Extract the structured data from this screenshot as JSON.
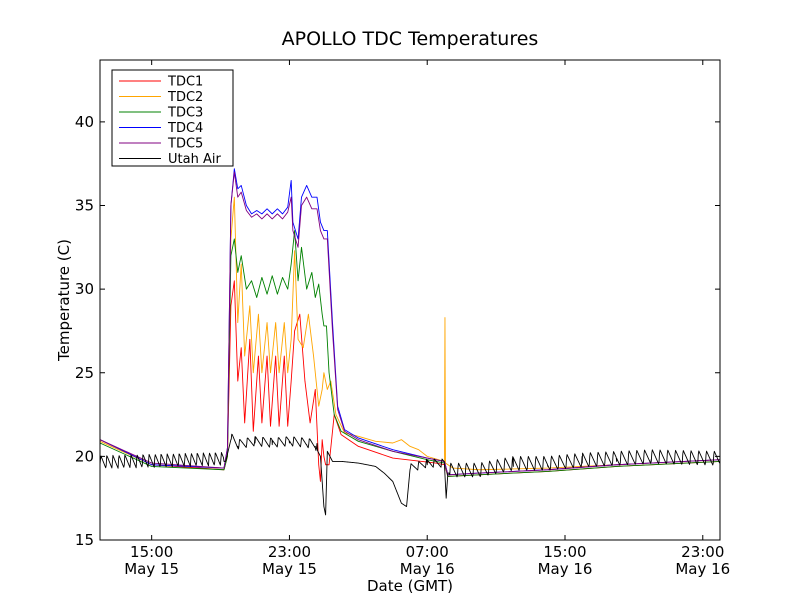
{
  "chart_data": {
    "type": "line",
    "title": "APOLLO TDC Temperatures",
    "xlabel": "Date (GMT)",
    "ylabel": "Temperature (C)",
    "x_unit": "hours since 12:00 May 15 GMT",
    "xlim": [
      0,
      36
    ],
    "ylim": [
      15,
      43.7
    ],
    "grid": false,
    "legend_position": "top-left",
    "x_ticks": [
      {
        "value": 3,
        "time": "15:00",
        "date": "May 15"
      },
      {
        "value": 11,
        "time": "23:00",
        "date": "May 15"
      },
      {
        "value": 19,
        "time": "07:00",
        "date": "May 16"
      },
      {
        "value": 27,
        "time": "15:00",
        "date": "May 16"
      },
      {
        "value": 35,
        "time": "23:00",
        "date": "May 16"
      }
    ],
    "y_ticks": [
      15,
      20,
      25,
      30,
      35,
      40
    ],
    "series": [
      {
        "name": "TDC1",
        "color": "#ff0000",
        "points": [
          [
            0,
            21
          ],
          [
            3,
            19.5
          ],
          [
            7.2,
            19.2
          ],
          [
            7.4,
            20
          ],
          [
            7.6,
            29
          ],
          [
            7.8,
            30.5
          ],
          [
            8,
            24.5
          ],
          [
            8.2,
            26.5
          ],
          [
            8.4,
            22
          ],
          [
            8.7,
            27
          ],
          [
            8.9,
            21.5
          ],
          [
            9.2,
            26
          ],
          [
            9.4,
            22
          ],
          [
            9.7,
            26
          ],
          [
            9.9,
            21.8
          ],
          [
            10.2,
            26
          ],
          [
            10.4,
            21.8
          ],
          [
            10.7,
            26
          ],
          [
            10.9,
            21.8
          ],
          [
            11.1,
            24.5
          ],
          [
            11.3,
            27.5
          ],
          [
            11.6,
            28.5
          ],
          [
            11.9,
            24.5
          ],
          [
            12.2,
            22
          ],
          [
            12.5,
            24
          ],
          [
            12.7,
            19.5
          ],
          [
            12.8,
            18.5
          ],
          [
            12.9,
            21
          ],
          [
            13,
            20
          ],
          [
            13.1,
            19.5
          ],
          [
            13.3,
            19.5
          ],
          [
            13.6,
            22.5
          ],
          [
            14,
            21.3
          ],
          [
            15,
            20.6
          ],
          [
            17,
            19.9
          ],
          [
            19.5,
            19.6
          ],
          [
            20,
            19.5
          ],
          [
            20.2,
            18.8
          ],
          [
            22,
            18.9
          ],
          [
            26,
            19.1
          ],
          [
            30,
            19.4
          ],
          [
            36,
            19.7
          ]
        ]
      },
      {
        "name": "TDC2",
        "color": "#ffa500",
        "points": [
          [
            0,
            20.9
          ],
          [
            3,
            19.5
          ],
          [
            7.2,
            19.3
          ],
          [
            7.4,
            20
          ],
          [
            7.6,
            33
          ],
          [
            7.8,
            35.5
          ],
          [
            8,
            28
          ],
          [
            8.2,
            31.5
          ],
          [
            8.4,
            26
          ],
          [
            8.7,
            29
          ],
          [
            8.9,
            25
          ],
          [
            9.2,
            28.5
          ],
          [
            9.4,
            25
          ],
          [
            9.7,
            28
          ],
          [
            9.9,
            25
          ],
          [
            10.2,
            28
          ],
          [
            10.4,
            25
          ],
          [
            10.7,
            28
          ],
          [
            10.9,
            25
          ],
          [
            11.1,
            27
          ],
          [
            11.3,
            32.3
          ],
          [
            11.5,
            27
          ],
          [
            11.8,
            26.5
          ],
          [
            12.1,
            28.5
          ],
          [
            12.4,
            26
          ],
          [
            12.7,
            23
          ],
          [
            12.9,
            24
          ],
          [
            13,
            25
          ],
          [
            13.2,
            24
          ],
          [
            13.4,
            24.5
          ],
          [
            13.7,
            22.5
          ],
          [
            14.2,
            21.4
          ],
          [
            15,
            21.2
          ],
          [
            16,
            20.9
          ],
          [
            17,
            20.8
          ],
          [
            17.5,
            21
          ],
          [
            18,
            20.6
          ],
          [
            18.5,
            20.4
          ],
          [
            19,
            20
          ],
          [
            20,
            19.7
          ],
          [
            20.03,
            28.3
          ],
          [
            20.06,
            19.6
          ],
          [
            20.5,
            19.3
          ],
          [
            22,
            19.2
          ],
          [
            26,
            19.3
          ],
          [
            30,
            19.5
          ],
          [
            36,
            19.8
          ]
        ]
      },
      {
        "name": "TDC3",
        "color": "#008000",
        "points": [
          [
            0,
            20.8
          ],
          [
            3,
            19.4
          ],
          [
            7.2,
            19.2
          ],
          [
            7.4,
            20
          ],
          [
            7.6,
            32
          ],
          [
            7.8,
            33
          ],
          [
            8,
            31
          ],
          [
            8.2,
            32
          ],
          [
            8.5,
            30
          ],
          [
            8.8,
            30.5
          ],
          [
            9.1,
            29.5
          ],
          [
            9.4,
            30.7
          ],
          [
            9.7,
            29.7
          ],
          [
            10,
            30.8
          ],
          [
            10.3,
            29.7
          ],
          [
            10.6,
            30.7
          ],
          [
            10.9,
            30
          ],
          [
            11.1,
            31.5
          ],
          [
            11.3,
            33.5
          ],
          [
            11.5,
            30.5
          ],
          [
            11.7,
            32.5
          ],
          [
            12,
            30
          ],
          [
            12.3,
            31
          ],
          [
            12.5,
            29.5
          ],
          [
            12.7,
            30.3
          ],
          [
            12.9,
            28.5
          ],
          [
            13,
            27.8
          ],
          [
            13.15,
            27.8
          ],
          [
            13.3,
            25
          ],
          [
            13.6,
            22.5
          ],
          [
            14,
            21.5
          ],
          [
            15,
            20.9
          ],
          [
            17,
            20.3
          ],
          [
            19,
            19.8
          ],
          [
            20,
            19.6
          ],
          [
            20.2,
            18.8
          ],
          [
            22,
            18.9
          ],
          [
            26,
            19.1
          ],
          [
            30,
            19.4
          ],
          [
            36,
            19.7
          ]
        ]
      },
      {
        "name": "TDC4",
        "color": "#0000ff",
        "points": [
          [
            0,
            21
          ],
          [
            3,
            19.5
          ],
          [
            7.2,
            19.3
          ],
          [
            7.4,
            20.5
          ],
          [
            7.6,
            35
          ],
          [
            7.8,
            37.2
          ],
          [
            8,
            36
          ],
          [
            8.2,
            36.2
          ],
          [
            8.5,
            35
          ],
          [
            8.8,
            34.5
          ],
          [
            9.1,
            34.7
          ],
          [
            9.4,
            34.5
          ],
          [
            9.7,
            34.8
          ],
          [
            10,
            34.5
          ],
          [
            10.3,
            34.8
          ],
          [
            10.6,
            34.5
          ],
          [
            10.9,
            34.9
          ],
          [
            11.1,
            36.5
          ],
          [
            11.2,
            34
          ],
          [
            11.5,
            33
          ],
          [
            11.7,
            35.5
          ],
          [
            12,
            36.2
          ],
          [
            12.3,
            35.5
          ],
          [
            12.6,
            35.5
          ],
          [
            12.8,
            34
          ],
          [
            13,
            33.5
          ],
          [
            13.2,
            33.5
          ],
          [
            13.5,
            28
          ],
          [
            13.8,
            23
          ],
          [
            14.2,
            21.6
          ],
          [
            15,
            21.1
          ],
          [
            17,
            20.4
          ],
          [
            19,
            19.9
          ],
          [
            20,
            19.7
          ],
          [
            20.2,
            18.9
          ],
          [
            22,
            19
          ],
          [
            26,
            19.2
          ],
          [
            30,
            19.5
          ],
          [
            36,
            19.8
          ]
        ]
      },
      {
        "name": "TDC5",
        "color": "#800080",
        "points": [
          [
            0,
            21
          ],
          [
            3,
            19.6
          ],
          [
            7.2,
            19.3
          ],
          [
            7.4,
            20.5
          ],
          [
            7.6,
            35
          ],
          [
            7.8,
            37
          ],
          [
            8,
            35.5
          ],
          [
            8.2,
            35.8
          ],
          [
            8.5,
            34.7
          ],
          [
            8.8,
            34.3
          ],
          [
            9.1,
            34.5
          ],
          [
            9.4,
            34.2
          ],
          [
            9.7,
            34.5
          ],
          [
            10,
            34.2
          ],
          [
            10.3,
            34.5
          ],
          [
            10.6,
            34.2
          ],
          [
            10.9,
            34.6
          ],
          [
            11.1,
            35.5
          ],
          [
            11.2,
            33.5
          ],
          [
            11.5,
            32.5
          ],
          [
            11.7,
            35
          ],
          [
            12,
            35.5
          ],
          [
            12.3,
            34.8
          ],
          [
            12.6,
            34.8
          ],
          [
            12.8,
            33.5
          ],
          [
            13,
            33
          ],
          [
            13.2,
            33
          ],
          [
            13.5,
            27.5
          ],
          [
            13.8,
            22.8
          ],
          [
            14.2,
            21.5
          ],
          [
            15,
            21
          ],
          [
            17,
            20.3
          ],
          [
            19,
            19.9
          ],
          [
            20,
            19.7
          ],
          [
            20.2,
            18.9
          ],
          [
            22,
            19
          ],
          [
            26,
            19.2
          ],
          [
            30,
            19.5
          ],
          [
            36,
            19.8
          ]
        ]
      },
      {
        "name": "Utah Air",
        "color": "#000000",
        "points": [
          [
            0,
            19.5
          ],
          [
            7.3,
            19.7
          ],
          [
            7.6,
            21
          ],
          [
            8,
            20.6
          ],
          [
            9,
            20.8
          ],
          [
            10,
            20.7
          ],
          [
            11,
            20.8
          ],
          [
            12,
            20.7
          ],
          [
            12.5,
            20.6
          ],
          [
            12.8,
            20
          ],
          [
            13,
            17
          ],
          [
            13.1,
            16.5
          ],
          [
            13.2,
            20.3
          ],
          [
            13.5,
            19.7
          ],
          [
            14,
            19.7
          ],
          [
            15,
            19.6
          ],
          [
            16,
            19.4
          ],
          [
            16.5,
            19
          ],
          [
            17,
            18.5
          ],
          [
            17.5,
            17.2
          ],
          [
            17.8,
            17
          ],
          [
            18,
            19.2
          ],
          [
            19,
            19.5
          ],
          [
            20,
            19.5
          ],
          [
            20.1,
            17.5
          ],
          [
            20.2,
            19
          ],
          [
            22,
            19
          ],
          [
            24,
            19.4
          ],
          [
            26,
            19.4
          ],
          [
            28,
            19.6
          ],
          [
            30,
            19.7
          ],
          [
            32,
            19.8
          ],
          [
            36,
            19.7
          ]
        ]
      }
    ],
    "air_oscillation": {
      "sections": [
        {
          "from": 0,
          "to": 7.2,
          "period": 0.35,
          "amplitude": 0.8
        },
        {
          "from": 7.6,
          "to": 12.6,
          "period": 0.45,
          "amplitude": 0.6
        },
        {
          "from": 18,
          "to": 20,
          "period": 0.45,
          "amplitude": 0.5
        },
        {
          "from": 20.3,
          "to": 36,
          "period": 0.45,
          "amplitude": 0.9
        }
      ]
    }
  }
}
